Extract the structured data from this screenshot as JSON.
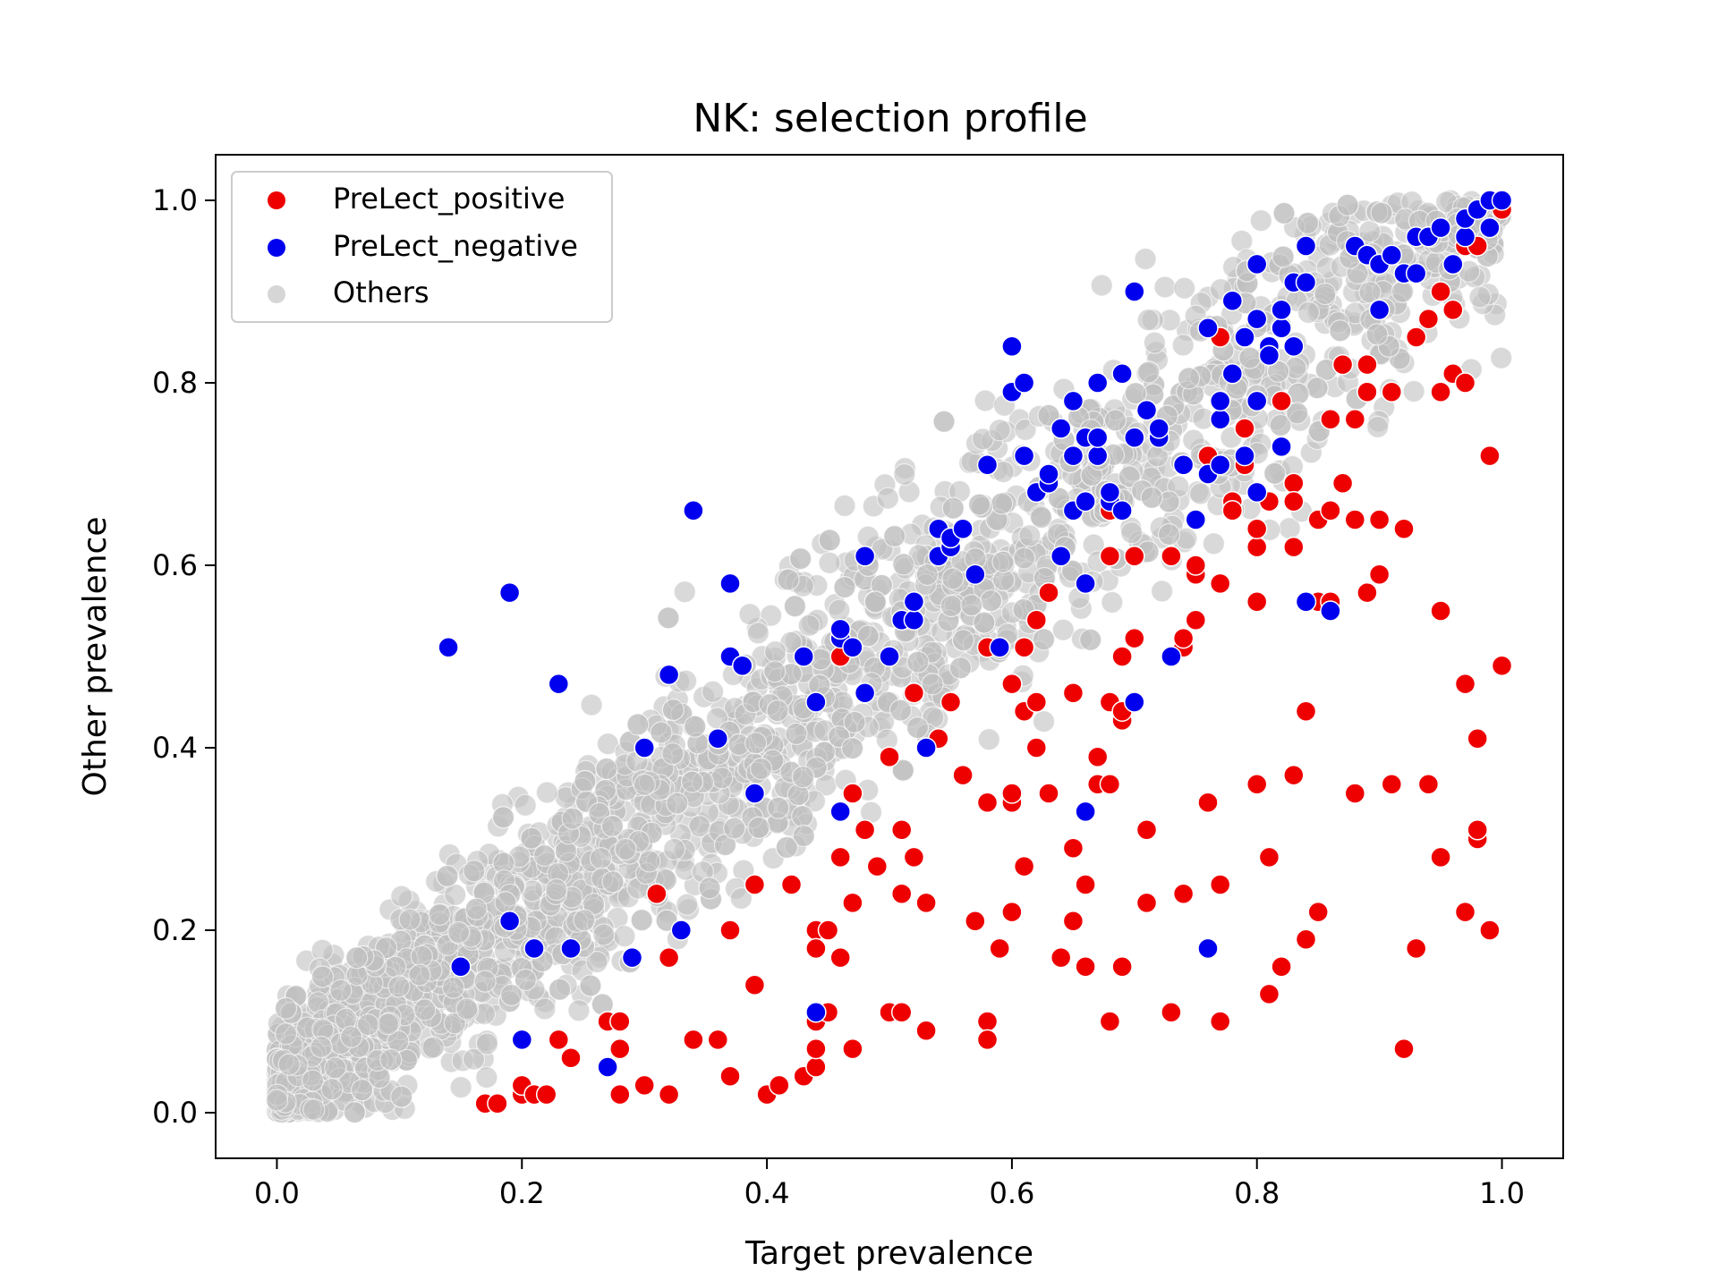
{
  "chart_data": {
    "type": "scatter",
    "title": "NK: selection profile",
    "xlabel": "Target prevalence",
    "ylabel": "Other prevalence",
    "xlim": [
      -0.05,
      1.05
    ],
    "ylim": [
      -0.05,
      1.05
    ],
    "xticks": [
      "0.0",
      "0.2",
      "0.4",
      "0.6",
      "0.8",
      "1.0"
    ],
    "yticks": [
      "0.0",
      "0.2",
      "0.4",
      "0.6",
      "0.8",
      "1.0"
    ],
    "grid": false,
    "legend_position": "top-left",
    "series": [
      {
        "name": "PreLect_positive",
        "color": "#ee0000",
        "points": [
          [
            0.17,
            0.01
          ],
          [
            0.18,
            0.01
          ],
          [
            0.2,
            0.02
          ],
          [
            0.2,
            0.03
          ],
          [
            0.21,
            0.02
          ],
          [
            0.22,
            0.02
          ],
          [
            0.23,
            0.08
          ],
          [
            0.24,
            0.06
          ],
          [
            0.27,
            0.1
          ],
          [
            0.28,
            0.1
          ],
          [
            0.28,
            0.07
          ],
          [
            0.28,
            0.02
          ],
          [
            0.3,
            0.03
          ],
          [
            0.31,
            0.24
          ],
          [
            0.32,
            0.17
          ],
          [
            0.32,
            0.02
          ],
          [
            0.34,
            0.08
          ],
          [
            0.36,
            0.08
          ],
          [
            0.37,
            0.04
          ],
          [
            0.37,
            0.2
          ],
          [
            0.39,
            0.25
          ],
          [
            0.39,
            0.14
          ],
          [
            0.4,
            0.02
          ],
          [
            0.4,
            0.02
          ],
          [
            0.41,
            0.03
          ],
          [
            0.42,
            0.25
          ],
          [
            0.43,
            0.04
          ],
          [
            0.44,
            0.05
          ],
          [
            0.44,
            0.1
          ],
          [
            0.44,
            0.2
          ],
          [
            0.44,
            0.18
          ],
          [
            0.44,
            0.07
          ],
          [
            0.45,
            0.2
          ],
          [
            0.45,
            0.11
          ],
          [
            0.46,
            0.17
          ],
          [
            0.46,
            0.28
          ],
          [
            0.46,
            0.5
          ],
          [
            0.47,
            0.23
          ],
          [
            0.47,
            0.07
          ],
          [
            0.47,
            0.35
          ],
          [
            0.48,
            0.31
          ],
          [
            0.49,
            0.27
          ],
          [
            0.5,
            0.11
          ],
          [
            0.5,
            0.39
          ],
          [
            0.51,
            0.31
          ],
          [
            0.51,
            0.11
          ],
          [
            0.51,
            0.24
          ],
          [
            0.52,
            0.46
          ],
          [
            0.52,
            0.28
          ],
          [
            0.53,
            0.09
          ],
          [
            0.53,
            0.23
          ],
          [
            0.53,
            0.4
          ],
          [
            0.54,
            0.41
          ],
          [
            0.55,
            0.45
          ],
          [
            0.56,
            0.37
          ],
          [
            0.57,
            0.21
          ],
          [
            0.58,
            0.1
          ],
          [
            0.58,
            0.08
          ],
          [
            0.58,
            0.34
          ],
          [
            0.58,
            0.51
          ],
          [
            0.59,
            0.18
          ],
          [
            0.6,
            0.34
          ],
          [
            0.6,
            0.35
          ],
          [
            0.6,
            0.47
          ],
          [
            0.6,
            0.22
          ],
          [
            0.61,
            0.27
          ],
          [
            0.61,
            0.51
          ],
          [
            0.61,
            0.44
          ],
          [
            0.62,
            0.54
          ],
          [
            0.62,
            0.45
          ],
          [
            0.62,
            0.4
          ],
          [
            0.63,
            0.57
          ],
          [
            0.63,
            0.35
          ],
          [
            0.64,
            0.17
          ],
          [
            0.65,
            0.21
          ],
          [
            0.65,
            0.29
          ],
          [
            0.65,
            0.46
          ],
          [
            0.66,
            0.16
          ],
          [
            0.66,
            0.25
          ],
          [
            0.67,
            0.39
          ],
          [
            0.67,
            0.36
          ],
          [
            0.68,
            0.36
          ],
          [
            0.68,
            0.1
          ],
          [
            0.68,
            0.45
          ],
          [
            0.68,
            0.61
          ],
          [
            0.68,
            0.66
          ],
          [
            0.69,
            0.43
          ],
          [
            0.69,
            0.44
          ],
          [
            0.69,
            0.5
          ],
          [
            0.69,
            0.16
          ],
          [
            0.7,
            0.52
          ],
          [
            0.7,
            0.45
          ],
          [
            0.7,
            0.61
          ],
          [
            0.71,
            0.23
          ],
          [
            0.71,
            0.31
          ],
          [
            0.73,
            0.61
          ],
          [
            0.73,
            0.11
          ],
          [
            0.74,
            0.24
          ],
          [
            0.74,
            0.51
          ],
          [
            0.74,
            0.52
          ],
          [
            0.75,
            0.65
          ],
          [
            0.75,
            0.59
          ],
          [
            0.75,
            0.6
          ],
          [
            0.75,
            0.54
          ],
          [
            0.76,
            0.72
          ],
          [
            0.76,
            0.34
          ],
          [
            0.77,
            0.58
          ],
          [
            0.77,
            0.1
          ],
          [
            0.77,
            0.25
          ],
          [
            0.77,
            0.85
          ],
          [
            0.78,
            0.67
          ],
          [
            0.78,
            0.66
          ],
          [
            0.79,
            0.71
          ],
          [
            0.79,
            0.75
          ],
          [
            0.8,
            0.56
          ],
          [
            0.8,
            0.62
          ],
          [
            0.8,
            0.36
          ],
          [
            0.8,
            0.64
          ],
          [
            0.81,
            0.28
          ],
          [
            0.81,
            0.67
          ],
          [
            0.81,
            0.13
          ],
          [
            0.82,
            0.16
          ],
          [
            0.82,
            0.78
          ],
          [
            0.83,
            0.37
          ],
          [
            0.83,
            0.69
          ],
          [
            0.83,
            0.67
          ],
          [
            0.83,
            0.62
          ],
          [
            0.84,
            0.19
          ],
          [
            0.84,
            0.44
          ],
          [
            0.85,
            0.22
          ],
          [
            0.85,
            0.65
          ],
          [
            0.85,
            0.56
          ],
          [
            0.86,
            0.56
          ],
          [
            0.86,
            0.66
          ],
          [
            0.86,
            0.76
          ],
          [
            0.87,
            0.69
          ],
          [
            0.87,
            0.82
          ],
          [
            0.88,
            0.76
          ],
          [
            0.88,
            0.65
          ],
          [
            0.88,
            0.35
          ],
          [
            0.89,
            0.57
          ],
          [
            0.89,
            0.79
          ],
          [
            0.89,
            0.82
          ],
          [
            0.9,
            0.59
          ],
          [
            0.9,
            0.65
          ],
          [
            0.91,
            0.79
          ],
          [
            0.91,
            0.36
          ],
          [
            0.92,
            0.64
          ],
          [
            0.92,
            0.07
          ],
          [
            0.93,
            0.18
          ],
          [
            0.93,
            0.85
          ],
          [
            0.94,
            0.87
          ],
          [
            0.94,
            0.36
          ],
          [
            0.95,
            0.55
          ],
          [
            0.95,
            0.28
          ],
          [
            0.95,
            0.79
          ],
          [
            0.95,
            0.9
          ],
          [
            0.96,
            0.88
          ],
          [
            0.96,
            0.81
          ],
          [
            0.97,
            0.8
          ],
          [
            0.97,
            0.95
          ],
          [
            0.97,
            0.47
          ],
          [
            0.97,
            0.22
          ],
          [
            0.98,
            0.3
          ],
          [
            0.98,
            0.31
          ],
          [
            0.98,
            0.95
          ],
          [
            0.98,
            0.41
          ],
          [
            0.99,
            0.72
          ],
          [
            0.99,
            0.2
          ],
          [
            0.99,
            0.97
          ],
          [
            1.0,
            0.49
          ],
          [
            1.0,
            0.99
          ]
        ]
      },
      {
        "name": "PreLect_negative",
        "color": "#0000ee",
        "points": [
          [
            0.14,
            0.51
          ],
          [
            0.15,
            0.16
          ],
          [
            0.19,
            0.57
          ],
          [
            0.19,
            0.21
          ],
          [
            0.2,
            0.08
          ],
          [
            0.21,
            0.18
          ],
          [
            0.23,
            0.47
          ],
          [
            0.24,
            0.18
          ],
          [
            0.27,
            0.05
          ],
          [
            0.29,
            0.17
          ],
          [
            0.3,
            0.4
          ],
          [
            0.32,
            0.48
          ],
          [
            0.33,
            0.2
          ],
          [
            0.34,
            0.66
          ],
          [
            0.36,
            0.41
          ],
          [
            0.37,
            0.58
          ],
          [
            0.37,
            0.5
          ],
          [
            0.38,
            0.49
          ],
          [
            0.39,
            0.35
          ],
          [
            0.43,
            0.5
          ],
          [
            0.44,
            0.45
          ],
          [
            0.44,
            0.11
          ],
          [
            0.46,
            0.52
          ],
          [
            0.46,
            0.53
          ],
          [
            0.46,
            0.33
          ],
          [
            0.47,
            0.51
          ],
          [
            0.48,
            0.61
          ],
          [
            0.48,
            0.46
          ],
          [
            0.5,
            0.5
          ],
          [
            0.51,
            0.54
          ],
          [
            0.52,
            0.54
          ],
          [
            0.52,
            0.56
          ],
          [
            0.53,
            0.4
          ],
          [
            0.54,
            0.64
          ],
          [
            0.54,
            0.61
          ],
          [
            0.55,
            0.62
          ],
          [
            0.55,
            0.63
          ],
          [
            0.56,
            0.64
          ],
          [
            0.57,
            0.59
          ],
          [
            0.58,
            0.71
          ],
          [
            0.59,
            0.51
          ],
          [
            0.6,
            0.79
          ],
          [
            0.6,
            0.84
          ],
          [
            0.61,
            0.8
          ],
          [
            0.61,
            0.72
          ],
          [
            0.62,
            0.68
          ],
          [
            0.62,
            0.68
          ],
          [
            0.63,
            0.69
          ],
          [
            0.63,
            0.7
          ],
          [
            0.64,
            0.61
          ],
          [
            0.64,
            0.75
          ],
          [
            0.65,
            0.72
          ],
          [
            0.65,
            0.66
          ],
          [
            0.65,
            0.78
          ],
          [
            0.66,
            0.67
          ],
          [
            0.66,
            0.74
          ],
          [
            0.66,
            0.58
          ],
          [
            0.66,
            0.33
          ],
          [
            0.67,
            0.8
          ],
          [
            0.67,
            0.72
          ],
          [
            0.67,
            0.74
          ],
          [
            0.68,
            0.67
          ],
          [
            0.68,
            0.68
          ],
          [
            0.69,
            0.81
          ],
          [
            0.69,
            0.66
          ],
          [
            0.7,
            0.74
          ],
          [
            0.7,
            0.9
          ],
          [
            0.7,
            0.45
          ],
          [
            0.71,
            0.77
          ],
          [
            0.72,
            0.74
          ],
          [
            0.72,
            0.75
          ],
          [
            0.73,
            0.5
          ],
          [
            0.74,
            0.71
          ],
          [
            0.75,
            0.65
          ],
          [
            0.76,
            0.7
          ],
          [
            0.76,
            0.86
          ],
          [
            0.76,
            0.18
          ],
          [
            0.77,
            0.76
          ],
          [
            0.77,
            0.78
          ],
          [
            0.77,
            0.71
          ],
          [
            0.78,
            0.81
          ],
          [
            0.78,
            0.89
          ],
          [
            0.79,
            0.85
          ],
          [
            0.79,
            0.72
          ],
          [
            0.8,
            0.78
          ],
          [
            0.8,
            0.87
          ],
          [
            0.8,
            0.93
          ],
          [
            0.8,
            0.68
          ],
          [
            0.81,
            0.84
          ],
          [
            0.81,
            0.83
          ],
          [
            0.82,
            0.86
          ],
          [
            0.82,
            0.88
          ],
          [
            0.82,
            0.73
          ],
          [
            0.83,
            0.84
          ],
          [
            0.83,
            0.91
          ],
          [
            0.84,
            0.91
          ],
          [
            0.84,
            0.95
          ],
          [
            0.84,
            0.56
          ],
          [
            0.86,
            0.55
          ],
          [
            0.88,
            0.95
          ],
          [
            0.89,
            0.94
          ],
          [
            0.9,
            0.93
          ],
          [
            0.9,
            0.88
          ],
          [
            0.91,
            0.94
          ],
          [
            0.92,
            0.92
          ],
          [
            0.93,
            0.92
          ],
          [
            0.93,
            0.96
          ],
          [
            0.94,
            0.96
          ],
          [
            0.95,
            0.97
          ],
          [
            0.96,
            0.93
          ],
          [
            0.97,
            0.96
          ],
          [
            0.97,
            0.98
          ],
          [
            0.98,
            0.99
          ],
          [
            0.98,
            0.99
          ],
          [
            0.99,
            0.97
          ],
          [
            0.99,
            1.0
          ],
          [
            1.0,
            1.0
          ]
        ]
      },
      {
        "name": "Others",
        "color": "#c0c0c0",
        "description_free_generation": true,
        "points": []
      }
    ]
  }
}
